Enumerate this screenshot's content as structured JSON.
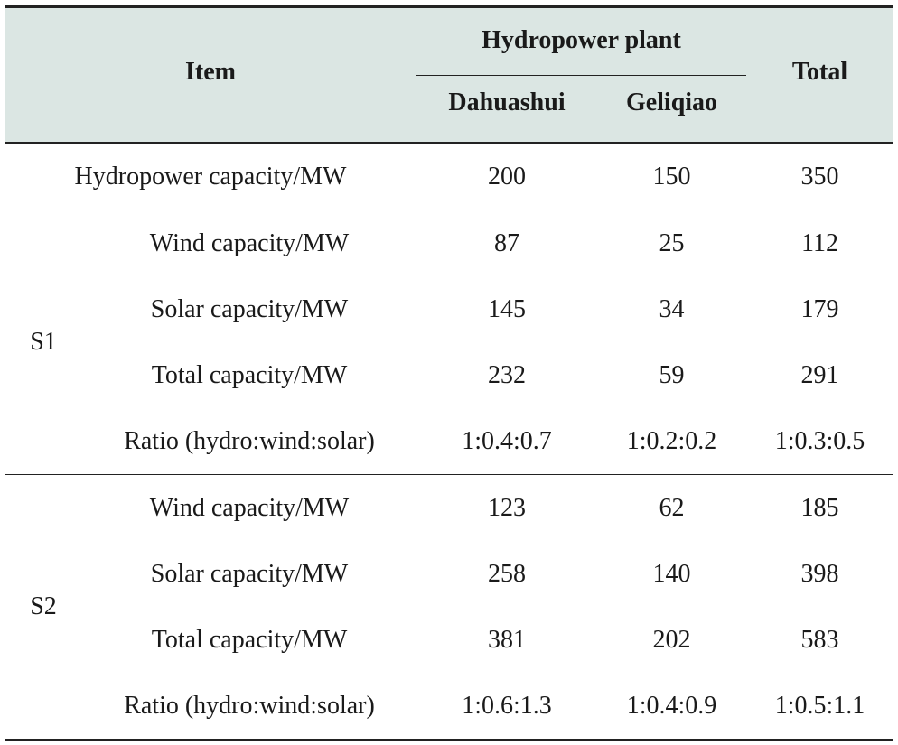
{
  "header": {
    "item": "Item",
    "group": "Hydropower plant",
    "col1": "Dahuashui",
    "col2": "Geliqiao",
    "total": "Total"
  },
  "hydro_row": {
    "label": "Hydropower capacity/MW",
    "v1": "200",
    "v2": "150",
    "v3": "350"
  },
  "s1": {
    "label": "S1",
    "rows": [
      {
        "label": "Wind capacity/MW",
        "v1": "87",
        "v2": "25",
        "v3": "112"
      },
      {
        "label": "Solar capacity/MW",
        "v1": "145",
        "v2": "34",
        "v3": "179"
      },
      {
        "label": "Total capacity/MW",
        "v1": "232",
        "v2": "59",
        "v3": "291"
      },
      {
        "label": "Ratio (hydro:wind:solar)",
        "v1": "1:0.4:0.7",
        "v2": "1:0.2:0.2",
        "v3": "1:0.3:0.5"
      }
    ]
  },
  "s2": {
    "label": "S2",
    "rows": [
      {
        "label": "Wind capacity/MW",
        "v1": "123",
        "v2": "62",
        "v3": "185"
      },
      {
        "label": "Solar capacity/MW",
        "v1": "258",
        "v2": "140",
        "v3": "398"
      },
      {
        "label": "Total capacity/MW",
        "v1": "381",
        "v2": "202",
        "v3": "583"
      },
      {
        "label": "Ratio (hydro:wind:solar)",
        "v1": "1:0.6:1.3",
        "v2": "1:0.4:0.9",
        "v3": "1:0.5:1.1"
      }
    ]
  }
}
